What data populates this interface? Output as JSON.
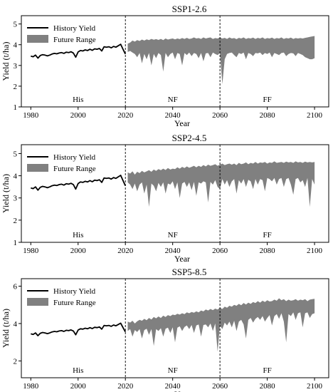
{
  "figure": {
    "xlabel": "Year",
    "ylabel": "Yield (t/ha)",
    "legend_history": "History Yield",
    "legend_future": "Future Range",
    "period_labels": [
      "His",
      "NF",
      "FF"
    ],
    "divider_years": [
      2020,
      2060
    ],
    "colors": {
      "history": "#000000",
      "future": "#808080"
    }
  },
  "chart_data": [
    {
      "type": "line",
      "title": "SSP1-2.6",
      "xlabel": "Year",
      "ylabel": "Yield (t/ha)",
      "xlim": [
        1976,
        2106
      ],
      "ylim": [
        1,
        5.4
      ],
      "xticks": [
        1980,
        2000,
        2020,
        2040,
        2060,
        2080,
        2100
      ],
      "yticks": [
        1,
        2,
        3,
        4,
        5
      ],
      "legend": "top-left",
      "grid": false,
      "series": [
        {
          "name": "History Yield",
          "x": [
            1980,
            1981,
            1982,
            1983,
            1984,
            1985,
            1986,
            1987,
            1988,
            1989,
            1990,
            1991,
            1992,
            1993,
            1994,
            1995,
            1996,
            1997,
            1998,
            1999,
            2000,
            2001,
            2002,
            2003,
            2004,
            2005,
            2006,
            2007,
            2008,
            2009,
            2010,
            2011,
            2012,
            2013,
            2014,
            2015,
            2016,
            2017,
            2018,
            2019,
            2020
          ],
          "y": [
            3.45,
            3.42,
            3.5,
            3.35,
            3.48,
            3.52,
            3.5,
            3.46,
            3.5,
            3.55,
            3.58,
            3.56,
            3.6,
            3.62,
            3.58,
            3.64,
            3.62,
            3.66,
            3.6,
            3.4,
            3.65,
            3.72,
            3.7,
            3.75,
            3.72,
            3.78,
            3.73,
            3.8,
            3.78,
            3.82,
            3.7,
            3.9,
            3.88,
            3.9,
            3.85,
            3.92,
            3.88,
            3.95,
            4.02,
            3.78,
            3.55
          ]
        }
      ],
      "future_range": {
        "name": "Future Range",
        "x_start": 2021,
        "upper": [
          4.05,
          4.1,
          4.2,
          4.15,
          4.22,
          4.18,
          4.25,
          4.2,
          4.26,
          4.22,
          4.28,
          4.24,
          4.27,
          4.23,
          4.28,
          4.22,
          4.3,
          4.25,
          4.28,
          4.3,
          4.26,
          4.3,
          4.27,
          4.32,
          4.28,
          4.33,
          4.28,
          4.3,
          4.35,
          4.3,
          4.32,
          4.28,
          4.35,
          4.3,
          4.33,
          4.35,
          4.28,
          4.32,
          4.3,
          4.35,
          4.3,
          4.33,
          4.28,
          4.35,
          4.3,
          4.32,
          4.27,
          4.33,
          4.3,
          4.35,
          4.28,
          4.32,
          4.3,
          4.34,
          4.28,
          4.33,
          4.3,
          4.35,
          4.28,
          4.32,
          4.3,
          4.34,
          4.28,
          4.32,
          4.3,
          4.35,
          4.28,
          4.32,
          4.3,
          4.34,
          4.28,
          4.32,
          4.3,
          4.32,
          4.3,
          4.33,
          4.35,
          4.38,
          4.4,
          4.42
        ],
        "lower": [
          3.65,
          3.7,
          3.62,
          3.55,
          3.4,
          3.6,
          3.1,
          3.55,
          3.3,
          3.6,
          3.0,
          3.55,
          3.35,
          3.6,
          3.5,
          2.7,
          3.6,
          3.4,
          3.55,
          3.62,
          3.3,
          3.6,
          3.55,
          3.0,
          3.6,
          3.5,
          3.62,
          3.45,
          3.6,
          3.55,
          3.35,
          3.6,
          3.2,
          3.58,
          3.6,
          3.4,
          3.62,
          3.55,
          3.5,
          3.6,
          2.1,
          3.3,
          3.55,
          3.6,
          3.62,
          3.5,
          3.4,
          3.6,
          3.55,
          3.62,
          3.3,
          3.6,
          3.55,
          3.45,
          3.6,
          3.58,
          3.62,
          3.5,
          3.6,
          3.55,
          3.62,
          3.4,
          3.6,
          3.55,
          3.5,
          3.6,
          3.62,
          3.45,
          3.55,
          3.6,
          3.58,
          3.45,
          3.6,
          3.55,
          3.5,
          3.4,
          3.35,
          3.3,
          3.3,
          3.35
        ]
      }
    },
    {
      "type": "line",
      "title": "SSP2-4.5",
      "xlabel": "Year",
      "ylabel": "Yield (t/ha)",
      "xlim": [
        1976,
        2106
      ],
      "ylim": [
        1,
        5.4
      ],
      "xticks": [
        1980,
        2000,
        2020,
        2040,
        2060,
        2080,
        2100
      ],
      "yticks": [
        1,
        2,
        3,
        4,
        5
      ],
      "legend": "top-left",
      "grid": false,
      "series": [
        {
          "name": "History Yield",
          "x": [
            1980,
            1981,
            1982,
            1983,
            1984,
            1985,
            1986,
            1987,
            1988,
            1989,
            1990,
            1991,
            1992,
            1993,
            1994,
            1995,
            1996,
            1997,
            1998,
            1999,
            2000,
            2001,
            2002,
            2003,
            2004,
            2005,
            2006,
            2007,
            2008,
            2009,
            2010,
            2011,
            2012,
            2013,
            2014,
            2015,
            2016,
            2017,
            2018,
            2019,
            2020
          ],
          "y": [
            3.45,
            3.42,
            3.5,
            3.35,
            3.48,
            3.52,
            3.5,
            3.46,
            3.5,
            3.55,
            3.58,
            3.56,
            3.6,
            3.62,
            3.58,
            3.64,
            3.62,
            3.66,
            3.6,
            3.4,
            3.65,
            3.72,
            3.7,
            3.75,
            3.72,
            3.78,
            3.73,
            3.8,
            3.78,
            3.82,
            3.7,
            3.9,
            3.88,
            3.9,
            3.85,
            3.92,
            3.88,
            3.95,
            4.02,
            3.78,
            3.55
          ]
        }
      ],
      "future_range": {
        "name": "Future Range",
        "x_start": 2021,
        "upper": [
          4.15,
          4.1,
          4.2,
          4.05,
          4.18,
          4.12,
          4.22,
          4.15,
          4.2,
          4.25,
          4.18,
          4.28,
          4.22,
          4.3,
          4.25,
          4.32,
          4.26,
          4.35,
          4.28,
          4.32,
          4.3,
          4.38,
          4.32,
          4.4,
          4.35,
          4.42,
          4.36,
          4.4,
          4.45,
          4.38,
          4.45,
          4.4,
          4.48,
          4.42,
          4.5,
          4.45,
          4.48,
          4.52,
          4.45,
          4.5,
          4.55,
          4.48,
          4.52,
          4.55,
          4.5,
          4.55,
          4.48,
          4.58,
          4.52,
          4.55,
          4.6,
          4.52,
          4.58,
          4.55,
          4.62,
          4.55,
          4.6,
          4.58,
          4.62,
          4.55,
          4.6,
          4.58,
          4.65,
          4.58,
          4.6,
          4.62,
          4.58,
          4.64,
          4.6,
          4.62,
          4.58,
          4.65,
          4.6,
          4.62,
          4.58,
          4.64,
          4.6,
          4.62,
          4.6,
          4.62
        ],
        "lower": [
          3.7,
          3.6,
          3.4,
          3.65,
          3.3,
          3.6,
          3.7,
          3.2,
          3.6,
          2.6,
          3.65,
          3.55,
          3.3,
          3.68,
          3.5,
          3.7,
          3.2,
          3.65,
          3.6,
          3.75,
          3.4,
          3.7,
          3.0,
          3.65,
          3.72,
          3.5,
          3.7,
          3.35,
          3.72,
          3.1,
          3.7,
          3.65,
          3.75,
          3.7,
          2.8,
          3.72,
          3.6,
          3.8,
          3.5,
          3.4,
          3.85,
          3.6,
          3.8,
          3.5,
          3.75,
          3.85,
          3.2,
          3.8,
          3.65,
          3.85,
          3.5,
          3.82,
          3.75,
          3.4,
          3.85,
          3.6,
          3.85,
          3.8,
          3.3,
          3.9,
          3.85,
          3.75,
          3.9,
          3.6,
          3.85,
          3.9,
          3.5,
          3.85,
          3.9,
          3.6,
          3.15,
          3.85,
          3.9,
          3.7,
          3.8,
          3.5,
          3.9,
          2.6,
          3.85,
          3.6
        ]
      }
    },
    {
      "type": "line",
      "title": "SSP5-8.5",
      "xlabel": "Year",
      "ylabel": "Yield (t/ha)",
      "xlim": [
        1976,
        2106
      ],
      "ylim": [
        1.1,
        6.4
      ],
      "xticks": [
        1980,
        2000,
        2020,
        2040,
        2060,
        2080,
        2100
      ],
      "yticks": [
        2,
        4,
        6
      ],
      "legend": "top-left",
      "grid": false,
      "series": [
        {
          "name": "History Yield",
          "x": [
            1980,
            1981,
            1982,
            1983,
            1984,
            1985,
            1986,
            1987,
            1988,
            1989,
            1990,
            1991,
            1992,
            1993,
            1994,
            1995,
            1996,
            1997,
            1998,
            1999,
            2000,
            2001,
            2002,
            2003,
            2004,
            2005,
            2006,
            2007,
            2008,
            2009,
            2010,
            2011,
            2012,
            2013,
            2014,
            2015,
            2016,
            2017,
            2018,
            2019,
            2020
          ],
          "y": [
            3.45,
            3.42,
            3.5,
            3.35,
            3.48,
            3.52,
            3.5,
            3.46,
            3.5,
            3.55,
            3.58,
            3.56,
            3.6,
            3.62,
            3.58,
            3.64,
            3.62,
            3.66,
            3.6,
            3.4,
            3.65,
            3.72,
            3.7,
            3.75,
            3.72,
            3.78,
            3.73,
            3.8,
            3.78,
            3.82,
            3.7,
            3.9,
            3.88,
            3.9,
            3.85,
            3.92,
            3.88,
            3.95,
            4.02,
            3.78,
            3.55
          ]
        }
      ],
      "future_range": {
        "name": "Future Range",
        "x_start": 2021,
        "upper": [
          4.1,
          4.05,
          4.15,
          4.0,
          4.12,
          4.2,
          4.15,
          4.25,
          4.18,
          4.3,
          4.22,
          4.35,
          4.28,
          4.38,
          4.3,
          4.42,
          4.35,
          4.45,
          4.4,
          4.48,
          4.45,
          4.52,
          4.48,
          4.55,
          4.5,
          4.6,
          4.55,
          4.62,
          4.58,
          4.65,
          4.6,
          4.7,
          4.65,
          4.75,
          4.7,
          4.78,
          4.72,
          4.8,
          4.75,
          4.85,
          4.78,
          4.9,
          4.85,
          4.95,
          4.9,
          5.0,
          4.95,
          5.05,
          4.98,
          5.1,
          5.02,
          5.12,
          5.05,
          5.15,
          5.1,
          5.2,
          5.12,
          5.22,
          5.15,
          5.25,
          5.18,
          5.2,
          5.28,
          5.22,
          5.35,
          5.25,
          5.3,
          5.2,
          5.28,
          5.22,
          5.25,
          5.3,
          5.22,
          5.28,
          5.25,
          5.3,
          5.2,
          5.28,
          5.3,
          5.32
        ],
        "lower": [
          3.6,
          3.7,
          3.3,
          3.65,
          3.55,
          3.7,
          3.2,
          3.65,
          3.72,
          3.4,
          3.7,
          2.8,
          3.7,
          3.6,
          3.75,
          3.3,
          3.72,
          3.78,
          3.5,
          3.8,
          3.0,
          3.78,
          3.85,
          3.6,
          3.82,
          3.9,
          3.7,
          3.92,
          3.5,
          3.9,
          3.95,
          3.3,
          3.92,
          3.95,
          3.8,
          4.0,
          3.6,
          4.0,
          2.5,
          3.9,
          3.7,
          4.05,
          3.9,
          4.1,
          3.8,
          4.15,
          3.6,
          4.1,
          4.2,
          3.95,
          3.2,
          4.2,
          4.3,
          4.05,
          4.25,
          4.35,
          4.2,
          4.4,
          4.1,
          4.3,
          4.45,
          3.9,
          4.4,
          4.5,
          4.25,
          4.55,
          4.1,
          3.0,
          4.5,
          4.4,
          4.6,
          4.2,
          4.55,
          4.6,
          3.8,
          4.55,
          4.6,
          4.3,
          4.5,
          4.55
        ]
      }
    }
  ]
}
